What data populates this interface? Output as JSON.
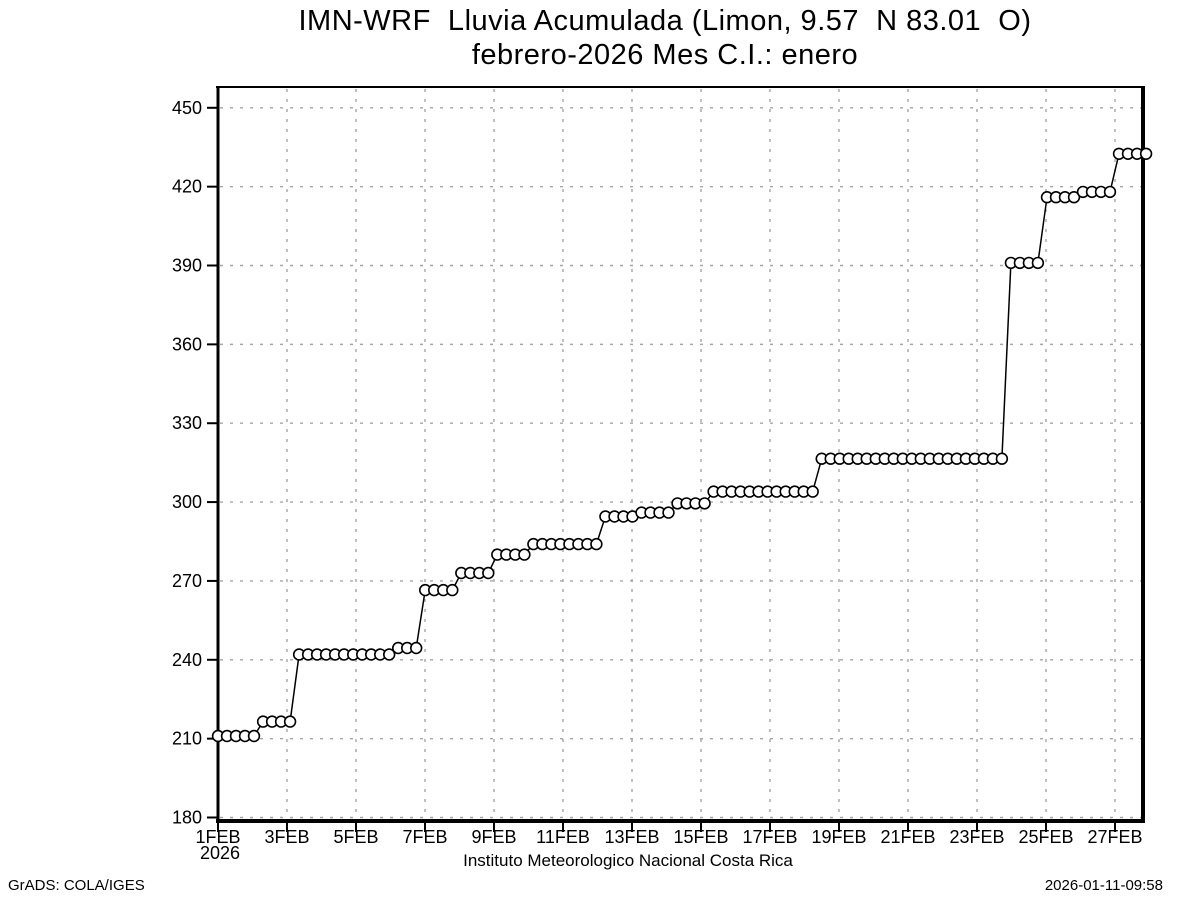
{
  "page": {
    "background": "#ffffff"
  },
  "footer": {
    "left": "GrADS: COLA/IGES",
    "right": "2026-01-11-09:58"
  },
  "chart_data": {
    "type": "line",
    "title": "IMN-WRF  Lluvia Acumulada (Limon, 9.57  N 83.01  O)",
    "subtitle": "febrero-2026 Mes C.I.: enero",
    "xlabel": "Instituto Meteorologico Nacional Costa Rica",
    "ylabel": "",
    "grid": {
      "show": true,
      "style": "dashed",
      "color": "#a6a6a6"
    },
    "line_color": "#000000",
    "marker": "open-circle",
    "x_axis": {
      "year_label": "2026",
      "tick_days": [
        1,
        3,
        5,
        7,
        9,
        11,
        13,
        15,
        17,
        19,
        21,
        23,
        25,
        27
      ],
      "tick_labels": [
        "1FEB",
        "3FEB",
        "5FEB",
        "7FEB",
        "9FEB",
        "11FEB",
        "13FEB",
        "15FEB",
        "17FEB",
        "19FEB",
        "21FEB",
        "23FEB",
        "25FEB",
        "27FEB"
      ],
      "min_day": 1,
      "max_day": 27.81
    },
    "y_axis": {
      "ticks": [
        180,
        210,
        240,
        270,
        300,
        330,
        360,
        390,
        420,
        450
      ],
      "min": 180,
      "max": 450
    },
    "series": [
      {
        "name": "lluvia-acumulada",
        "start_day": 1.0,
        "step_day": 0.26117,
        "values": [
          211,
          211,
          211,
          211,
          211,
          216.5,
          216.5,
          216.5,
          216.5,
          242,
          242,
          242,
          242,
          242,
          242,
          242,
          242,
          242,
          242,
          242,
          244.5,
          244.5,
          244.5,
          266.5,
          266.5,
          266.5,
          266.5,
          273,
          273,
          273,
          273,
          280,
          280,
          280,
          280,
          284,
          284,
          284,
          284,
          284,
          284,
          284,
          284,
          294.5,
          294.5,
          294.5,
          294.5,
          296,
          296,
          296,
          296,
          299.5,
          299.5,
          299.5,
          299.5,
          304,
          304,
          304,
          304,
          304,
          304,
          304,
          304,
          304,
          304,
          304,
          304,
          316.5,
          316.5,
          316.5,
          316.5,
          316.5,
          316.5,
          316.5,
          316.5,
          316.5,
          316.5,
          316.5,
          316.5,
          316.5,
          316.5,
          316.5,
          316.5,
          316.5,
          316.5,
          316.5,
          316.5,
          316.5,
          391,
          391,
          391,
          391,
          416,
          416,
          416,
          416,
          418,
          418,
          418,
          418,
          432.5,
          432.5,
          432.5,
          432.5
        ]
      }
    ]
  }
}
